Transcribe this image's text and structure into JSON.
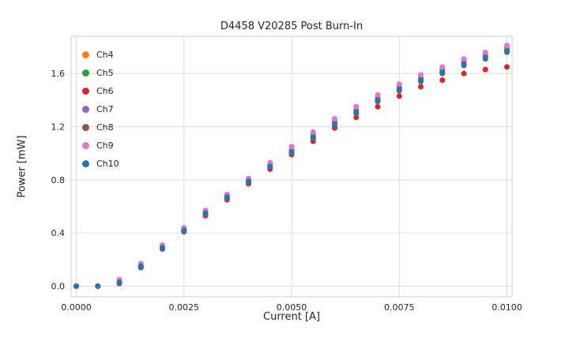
{
  "chart_data": {
    "type": "scatter",
    "title": "D4458 V20285 Post Burn-In",
    "xlabel": "Current [A]",
    "ylabel": "Power [mW]",
    "grid": true,
    "legend_position": "upper left",
    "xlim": [
      -0.00012,
      0.01012
    ],
    "ylim": [
      -0.08,
      1.88
    ],
    "x_ticks": {
      "values": [
        0.0,
        0.0025,
        0.005,
        0.0075,
        0.01
      ],
      "labels": [
        "0.0000",
        "0.0025",
        "0.0050",
        "0.0075",
        "0.0100"
      ]
    },
    "y_ticks": {
      "values": [
        0.0,
        0.4,
        0.8,
        1.2,
        1.6
      ],
      "labels": [
        "0.0",
        "0.4",
        "0.8",
        "1.2",
        "1.6"
      ]
    },
    "x": [
      0.0,
      0.0005,
      0.001,
      0.0015,
      0.002,
      0.0025,
      0.003,
      0.0035,
      0.004,
      0.0045,
      0.005,
      0.0055,
      0.006,
      0.0065,
      0.007,
      0.0075,
      0.008,
      0.0085,
      0.009,
      0.0095,
      0.01
    ],
    "series": [
      {
        "name": "Ch4",
        "color": "#ff7f0e",
        "values": [
          0.0,
          0.0,
          0.03,
          0.15,
          0.29,
          0.42,
          0.55,
          0.67,
          0.79,
          0.91,
          1.02,
          1.13,
          1.23,
          1.32,
          1.41,
          1.49,
          1.56,
          1.62,
          1.68,
          1.73,
          1.78
        ]
      },
      {
        "name": "Ch5",
        "color": "#2ca02c",
        "values": [
          0.0,
          0.0,
          0.02,
          0.14,
          0.28,
          0.41,
          0.54,
          0.66,
          0.78,
          0.9,
          1.01,
          1.12,
          1.22,
          1.31,
          1.4,
          1.48,
          1.55,
          1.61,
          1.67,
          1.72,
          1.77
        ]
      },
      {
        "name": "Ch6",
        "color": "#d62728",
        "values": [
          0.0,
          0.0,
          0.02,
          0.14,
          0.28,
          0.41,
          0.53,
          0.65,
          0.77,
          0.88,
          0.99,
          1.09,
          1.19,
          1.27,
          1.35,
          1.43,
          1.5,
          1.55,
          1.6,
          1.63,
          1.65
        ]
      },
      {
        "name": "Ch7",
        "color": "#9467bd",
        "values": [
          0.0,
          0.0,
          0.03,
          0.15,
          0.29,
          0.43,
          0.56,
          0.68,
          0.8,
          0.92,
          1.03,
          1.14,
          1.24,
          1.33,
          1.42,
          1.5,
          1.57,
          1.63,
          1.69,
          1.74,
          1.79
        ]
      },
      {
        "name": "Ch8",
        "color": "#8c564b",
        "values": [
          0.0,
          0.0,
          0.02,
          0.14,
          0.28,
          0.41,
          0.54,
          0.66,
          0.78,
          0.9,
          1.0,
          1.11,
          1.21,
          1.3,
          1.39,
          1.47,
          1.54,
          1.6,
          1.66,
          1.71,
          1.76
        ]
      },
      {
        "name": "Ch9",
        "color": "#e377c2",
        "values": [
          0.0,
          0.0,
          0.05,
          0.17,
          0.31,
          0.44,
          0.57,
          0.69,
          0.81,
          0.93,
          1.05,
          1.16,
          1.26,
          1.35,
          1.44,
          1.52,
          1.59,
          1.65,
          1.71,
          1.76,
          1.81
        ]
      },
      {
        "name": "Ch10",
        "color": "#1f77b4",
        "values": [
          0.0,
          0.0,
          0.03,
          0.15,
          0.29,
          0.42,
          0.55,
          0.67,
          0.79,
          0.9,
          1.01,
          1.12,
          1.22,
          1.31,
          1.4,
          1.48,
          1.55,
          1.61,
          1.67,
          1.72,
          1.77
        ]
      }
    ],
    "style": {
      "grid_color": "#dddddd",
      "spine_color": "#cccccc",
      "marker_radius": 3.5
    }
  }
}
